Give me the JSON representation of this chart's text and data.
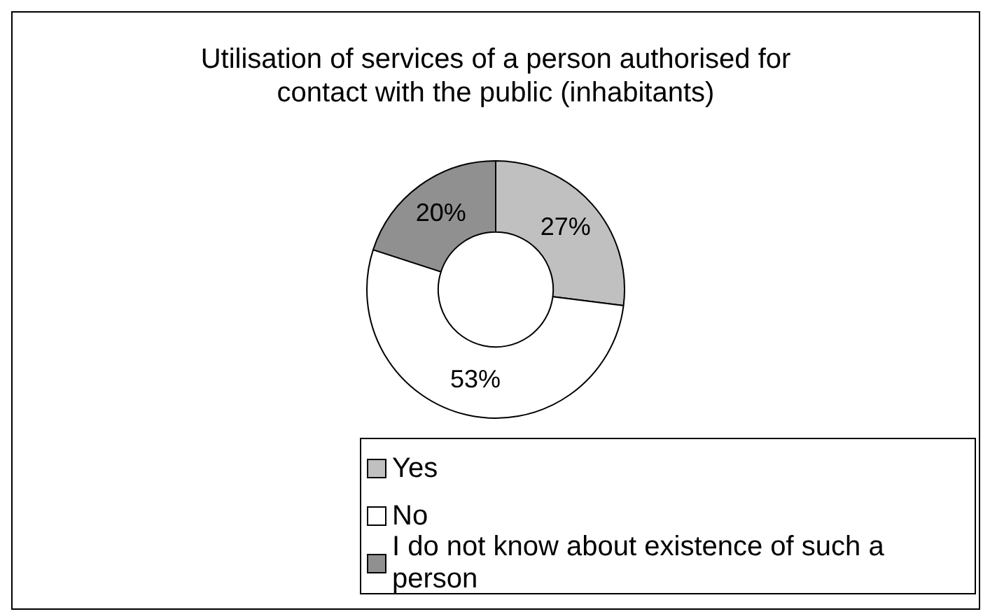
{
  "chart_data": {
    "type": "donut",
    "title": "Utilisation of services of a person authorised for contact with the public (inhabitants)",
    "categories": [
      "Yes",
      "No",
      "I do not know about existence of such a person"
    ],
    "values": [
      27,
      53,
      20
    ],
    "colors": [
      "#c0c0c0",
      "#ffffff",
      "#909090"
    ],
    "value_labels": [
      "27%",
      "53%",
      "20%"
    ],
    "legend": "bottom"
  }
}
